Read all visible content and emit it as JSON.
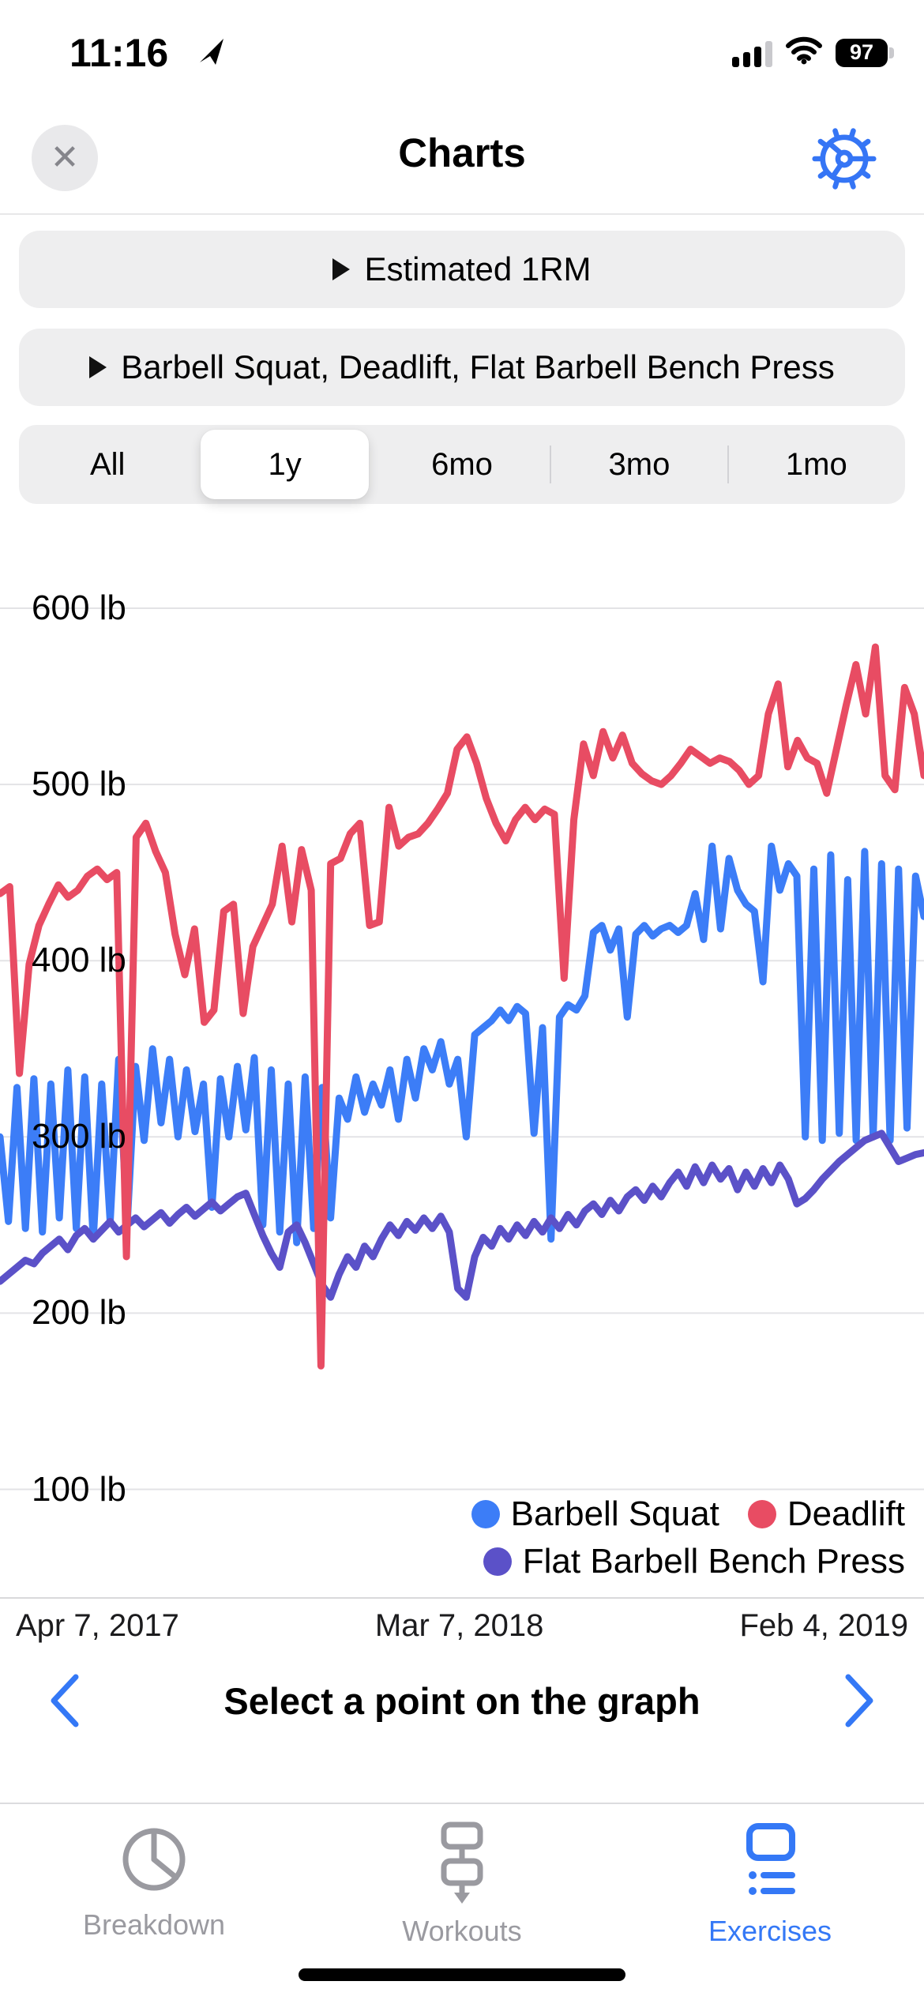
{
  "status_bar": {
    "time": "11:16",
    "battery_percent": "97"
  },
  "header": {
    "title": "Charts",
    "close_glyph": "✕"
  },
  "filters": {
    "metric_label": "Estimated 1RM",
    "exercises_label": "Barbell Squat, Deadlift, Flat Barbell Bench Press"
  },
  "range_control": {
    "options": [
      "All",
      "1y",
      "6mo",
      "3mo",
      "1mo"
    ],
    "selected": "1y"
  },
  "chart_data": {
    "type": "line",
    "unit": "lb",
    "y_ticks": [
      "600 lb",
      "500 lb",
      "400 lb",
      "300 lb",
      "200 lb",
      "100 lb"
    ],
    "y_tick_values": [
      600,
      500,
      400,
      300,
      200,
      100
    ],
    "x_labels": [
      "Apr 7, 2017",
      "Mar 7, 2018",
      "Feb 4, 2019"
    ],
    "grid_color": "#e3e3e6",
    "series": [
      {
        "name": "Barbell Squat",
        "color": "#3c7df7",
        "values": [
          300,
          252,
          328,
          248,
          333,
          246,
          330,
          254,
          338,
          248,
          334,
          242,
          330,
          252,
          344,
          250,
          340,
          298,
          350,
          308,
          344,
          300,
          338,
          303,
          330,
          260,
          333,
          300,
          340,
          304,
          345,
          250,
          338,
          246,
          330,
          240,
          334,
          248,
          328,
          254,
          322,
          310,
          334,
          314,
          330,
          318,
          338,
          310,
          344,
          322,
          350,
          338,
          354,
          330,
          344,
          300,
          358,
          362,
          366,
          372,
          366,
          374,
          370,
          302,
          362,
          242,
          368,
          375,
          372,
          380,
          416,
          420,
          406,
          418,
          368,
          415,
          420,
          414,
          418,
          420,
          416,
          420,
          438,
          412,
          465,
          418,
          458,
          440,
          432,
          428,
          388,
          465,
          440,
          455,
          448,
          300,
          452,
          298,
          460,
          302,
          446,
          298,
          462,
          300,
          455,
          298,
          452,
          305,
          448,
          425
        ]
      },
      {
        "name": "Deadlift",
        "color": "#e84c63",
        "values": [
          438,
          442,
          336,
          398,
          420,
          432,
          443,
          436,
          440,
          448,
          452,
          446,
          450,
          232,
          470,
          478,
          462,
          450,
          415,
          392,
          418,
          365,
          372,
          428,
          432,
          370,
          408,
          420,
          432,
          465,
          422,
          463,
          440,
          170,
          455,
          458,
          472,
          478,
          420,
          422,
          487,
          465,
          470,
          472,
          478,
          486,
          495,
          520,
          527,
          512,
          492,
          478,
          468,
          480,
          487,
          480,
          486,
          483,
          390,
          480,
          523,
          505,
          530,
          515,
          528,
          512,
          506,
          502,
          500,
          505,
          512,
          520,
          516,
          512,
          515,
          513,
          508,
          500,
          505,
          540,
          557,
          510,
          525,
          515,
          512,
          495,
          520,
          545,
          568,
          540,
          578,
          505,
          497,
          555,
          540,
          505
        ]
      },
      {
        "name": "Flat Barbell Bench Press",
        "color": "#5b51c8",
        "values": [
          218,
          222,
          226,
          230,
          228,
          234,
          238,
          242,
          236,
          244,
          248,
          242,
          247,
          252,
          246,
          250,
          254,
          249,
          253,
          257,
          251,
          256,
          260,
          255,
          259,
          263,
          258,
          262,
          266,
          268,
          256,
          244,
          234,
          226,
          246,
          250,
          240,
          228,
          216,
          209,
          222,
          232,
          226,
          238,
          232,
          242,
          250,
          244,
          252,
          247,
          254,
          248,
          255,
          246,
          214,
          209,
          232,
          243,
          238,
          248,
          242,
          250,
          244,
          252,
          246,
          254,
          248,
          256,
          250,
          258,
          262,
          256,
          264,
          258,
          266,
          270,
          264,
          272,
          266,
          274,
          280,
          272,
          283,
          274,
          284,
          276,
          282,
          270,
          280,
          272,
          282,
          274,
          284,
          276,
          262,
          265,
          270,
          276,
          281,
          286,
          290,
          294,
          298,
          300,
          302,
          294,
          286,
          288,
          290,
          291
        ]
      }
    ],
    "draw_order": [
      0,
      2,
      1
    ]
  },
  "footer": {
    "prompt": "Select a point on the graph"
  },
  "tab_bar": {
    "tabs": [
      {
        "label": "Breakdown",
        "active": false
      },
      {
        "label": "Workouts",
        "active": false
      },
      {
        "label": "Exercises",
        "active": true
      }
    ]
  }
}
